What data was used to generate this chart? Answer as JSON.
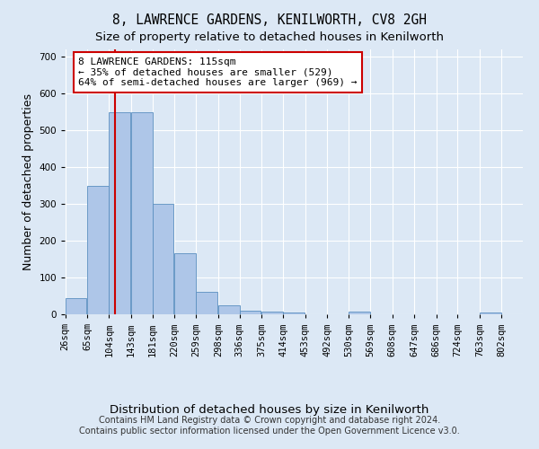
{
  "title": "8, LAWRENCE GARDENS, KENILWORTH, CV8 2GH",
  "subtitle": "Size of property relative to detached houses in Kenilworth",
  "xlabel": "Distribution of detached houses by size in Kenilworth",
  "ylabel": "Number of detached properties",
  "footer_line1": "Contains HM Land Registry data © Crown copyright and database right 2024.",
  "footer_line2": "Contains public sector information licensed under the Open Government Licence v3.0.",
  "bin_edges": [
    26,
    65,
    104,
    143,
    181,
    220,
    259,
    298,
    336,
    375,
    414,
    453,
    492,
    530,
    569,
    608,
    647,
    686,
    724,
    763,
    802
  ],
  "bar_heights": [
    45,
    350,
    550,
    550,
    300,
    165,
    60,
    25,
    10,
    7,
    5,
    0,
    0,
    8,
    0,
    0,
    0,
    0,
    0,
    5
  ],
  "bar_color": "#aec6e8",
  "bar_edge_color": "#5a8fc0",
  "property_size": 115,
  "vline_color": "#cc0000",
  "annotation_line1": "8 LAWRENCE GARDENS: 115sqm",
  "annotation_line2": "← 35% of detached houses are smaller (529)",
  "annotation_line3": "64% of semi-detached houses are larger (969) →",
  "annotation_box_color": "#ffffff",
  "annotation_border_color": "#cc0000",
  "ylim": [
    0,
    720
  ],
  "yticks": [
    0,
    100,
    200,
    300,
    400,
    500,
    600,
    700
  ],
  "background_color": "#dce8f5",
  "grid_color": "#ffffff",
  "title_fontsize": 10.5,
  "subtitle_fontsize": 9.5,
  "ylabel_fontsize": 9,
  "xlabel_fontsize": 9.5,
  "tick_fontsize": 7.5,
  "annotation_fontsize": 8,
  "footer_fontsize": 7
}
